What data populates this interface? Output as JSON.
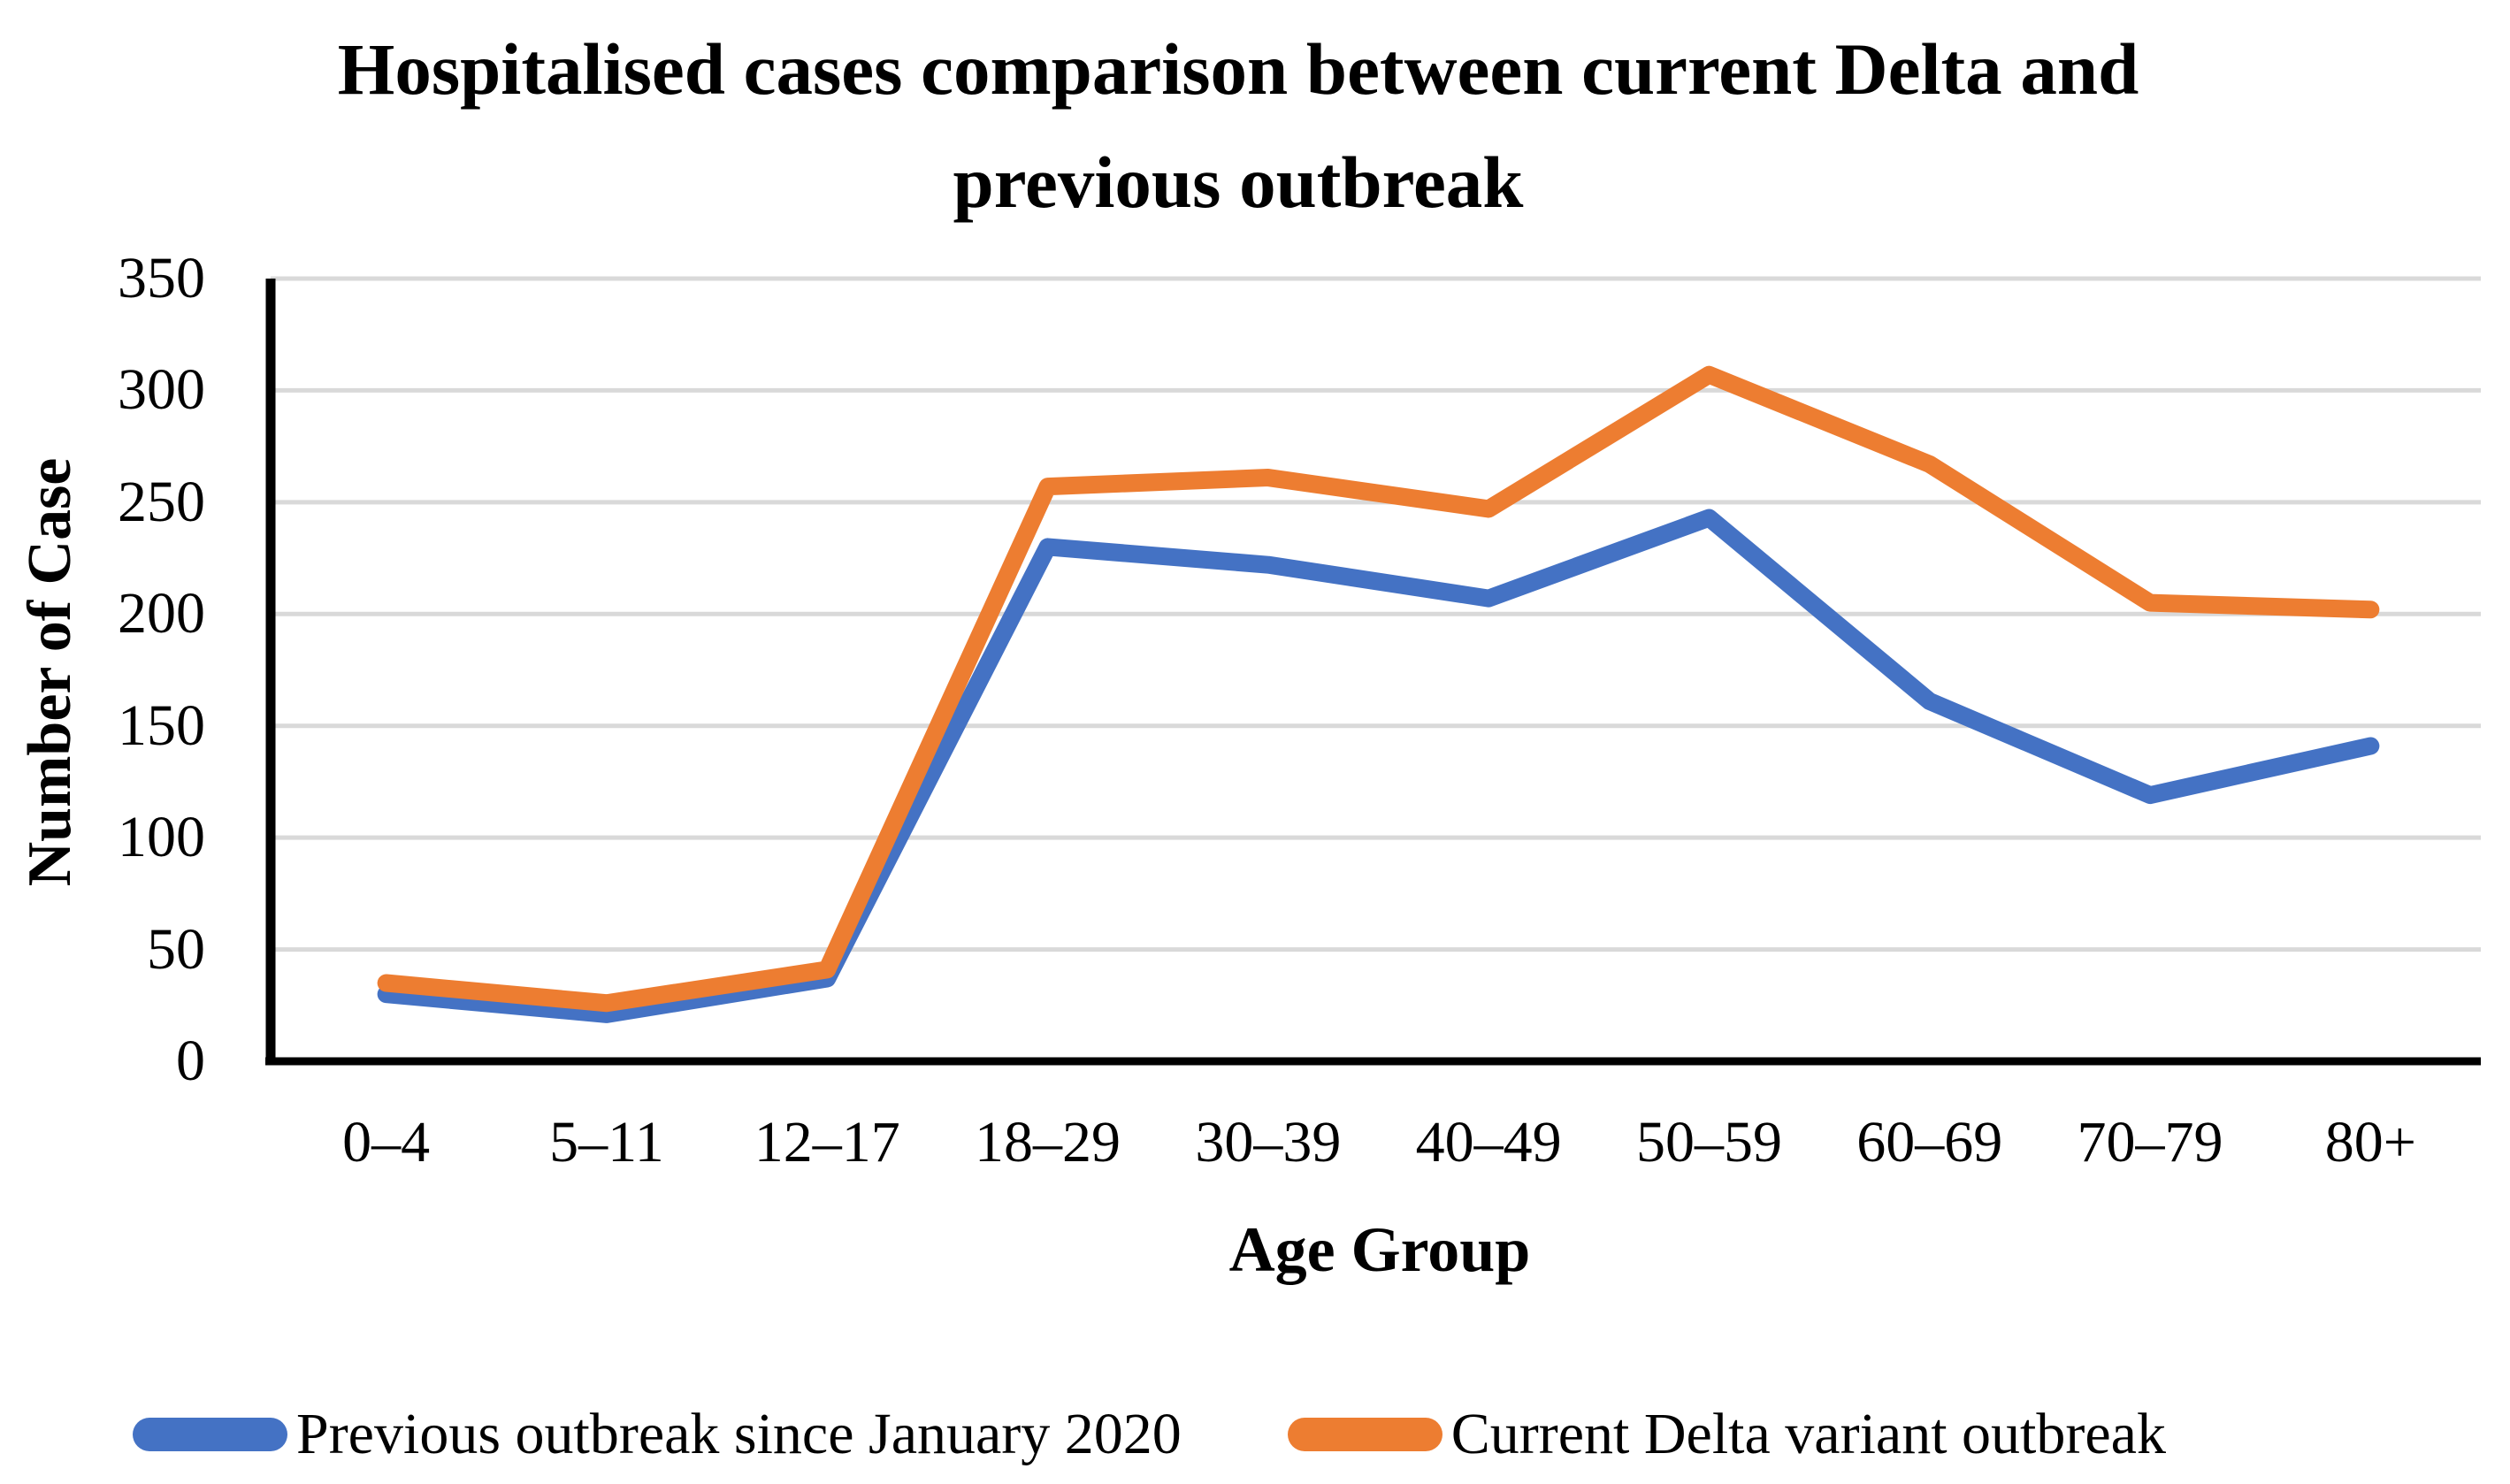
{
  "title_line1": "Hospitalised cases comparison between current Delta and",
  "title_line2": "previous outbreak",
  "chart_data": {
    "type": "line",
    "title": "Hospitalised cases comparison between current Delta and previous outbreak",
    "xlabel": "Age Group",
    "ylabel": "Number of Case",
    "categories": [
      "0–4",
      "5–11",
      "12–17",
      "18–29",
      "30–39",
      "40–49",
      "50–59",
      "60–69",
      "70–79",
      "80+"
    ],
    "series": [
      {
        "name": "Previous outbreak since January 2020",
        "color": "#4472C4",
        "values": [
          30,
          21,
          37,
          230,
          222,
          207,
          243,
          161,
          119,
          141
        ]
      },
      {
        "name": "Current Delta variant outbreak",
        "color": "#ED7D31",
        "values": [
          35,
          26,
          41,
          257,
          261,
          247,
          307,
          267,
          205,
          202
        ]
      }
    ],
    "ylim": [
      0,
      350
    ],
    "yticks": [
      350,
      300,
      250,
      200,
      150,
      100,
      50,
      0
    ],
    "grid": true,
    "gridline_color": "#D9D9D9",
    "axis_color": "#000000",
    "legend_position": "bottom"
  }
}
